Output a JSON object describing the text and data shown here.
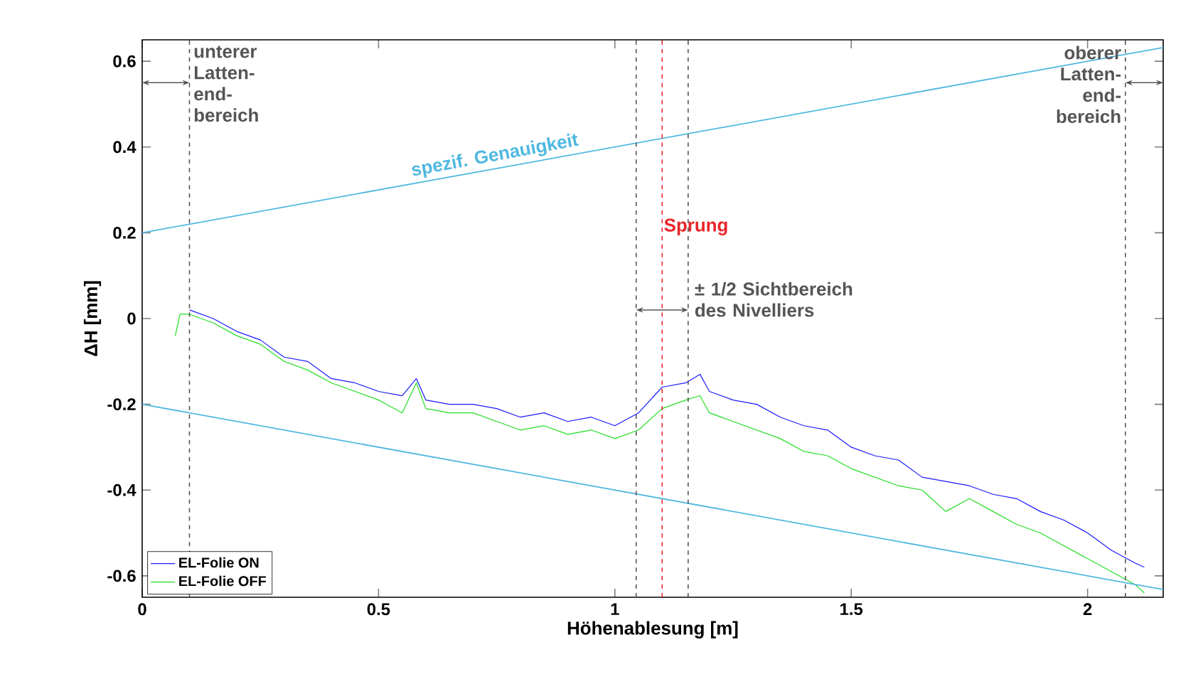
{
  "chart_data": {
    "type": "line",
    "xlabel": "Höhenablesung [m]",
    "ylabel": "ΔH [mm]",
    "xlim": [
      0,
      2.16
    ],
    "ylim": [
      -0.65,
      0.65
    ],
    "xticks": [
      0,
      0.5,
      1,
      1.5,
      2
    ],
    "yticks": [
      -0.6,
      -0.4,
      -0.2,
      0,
      0.2,
      0.4,
      0.6
    ],
    "grid": false,
    "legend": "bottom left",
    "line_style": "solid",
    "marker": "none",
    "series": [
      {
        "name": "EL-Folie ON",
        "color": "#1a1aff",
        "x": [
          0.1,
          0.15,
          0.2,
          0.25,
          0.3,
          0.35,
          0.4,
          0.45,
          0.5,
          0.55,
          0.58,
          0.6,
          0.65,
          0.7,
          0.75,
          0.8,
          0.85,
          0.9,
          0.95,
          1.0,
          1.05,
          1.1,
          1.15,
          1.18,
          1.2,
          1.25,
          1.3,
          1.35,
          1.4,
          1.45,
          1.5,
          1.55,
          1.6,
          1.65,
          1.7,
          1.75,
          1.8,
          1.85,
          1.9,
          1.95,
          2.0,
          2.05,
          2.1,
          2.12
        ],
        "values": [
          0.02,
          0.0,
          -0.03,
          -0.05,
          -0.09,
          -0.1,
          -0.14,
          -0.15,
          -0.17,
          -0.18,
          -0.14,
          -0.19,
          -0.2,
          -0.2,
          -0.21,
          -0.23,
          -0.22,
          -0.24,
          -0.23,
          -0.25,
          -0.22,
          -0.16,
          -0.15,
          -0.13,
          -0.17,
          -0.19,
          -0.2,
          -0.23,
          -0.25,
          -0.26,
          -0.3,
          -0.32,
          -0.33,
          -0.37,
          -0.38,
          -0.39,
          -0.41,
          -0.42,
          -0.45,
          -0.47,
          -0.5,
          -0.54,
          -0.57,
          -0.58
        ]
      },
      {
        "name": "EL-Folie OFF",
        "color": "#22dd22",
        "x": [
          0.07,
          0.08,
          0.1,
          0.15,
          0.2,
          0.25,
          0.3,
          0.35,
          0.4,
          0.45,
          0.5,
          0.55,
          0.58,
          0.6,
          0.65,
          0.7,
          0.75,
          0.8,
          0.85,
          0.9,
          0.95,
          1.0,
          1.05,
          1.1,
          1.15,
          1.18,
          1.2,
          1.25,
          1.3,
          1.35,
          1.4,
          1.45,
          1.5,
          1.55,
          1.6,
          1.65,
          1.7,
          1.75,
          1.8,
          1.85,
          1.9,
          1.95,
          2.0,
          2.05,
          2.1,
          2.12
        ],
        "values": [
          -0.04,
          0.01,
          0.01,
          -0.01,
          -0.04,
          -0.06,
          -0.1,
          -0.12,
          -0.15,
          -0.17,
          -0.19,
          -0.22,
          -0.15,
          -0.21,
          -0.22,
          -0.22,
          -0.24,
          -0.26,
          -0.25,
          -0.27,
          -0.26,
          -0.28,
          -0.26,
          -0.21,
          -0.19,
          -0.18,
          -0.22,
          -0.24,
          -0.26,
          -0.28,
          -0.31,
          -0.32,
          -0.35,
          -0.37,
          -0.39,
          -0.4,
          -0.45,
          -0.42,
          -0.45,
          -0.48,
          -0.5,
          -0.53,
          -0.56,
          -0.59,
          -0.62,
          -0.64
        ]
      },
      {
        "type": "line",
        "color": "#4fb8e0",
        "x": [
          0,
          2.16
        ],
        "values": [
          0.2,
          0.632
        ]
      },
      {
        "type": "line",
        "color": "#4fb8e0",
        "x": [
          0,
          2.16
        ],
        "values": [
          -0.2,
          -0.632
        ]
      }
    ],
    "ref_lines": [
      {
        "axis": "x",
        "value": 0.1,
        "color": "#555555",
        "line_style": "dashed"
      },
      {
        "axis": "x",
        "value": 1.045,
        "color": "#555555",
        "line_style": "dashed"
      },
      {
        "axis": "x",
        "value": 1.1,
        "color": "#e8262a",
        "line_style": "dashed",
        "label": "Sprung"
      },
      {
        "axis": "x",
        "value": 1.155,
        "color": "#555555",
        "line_style": "dashed"
      },
      {
        "axis": "x",
        "value": 2.08,
        "color": "#555555",
        "line_style": "dashed"
      }
    ],
    "annotations": [
      "unterer Latten- end- bereich",
      "oberer Latten- end- bereich",
      "spezif. Genauigkeit",
      {
        "text": "± 1/2 Sichtbereich des Nivelliers",
        "x": 1.1,
        "y": 0.02
      }
    ]
  }
}
